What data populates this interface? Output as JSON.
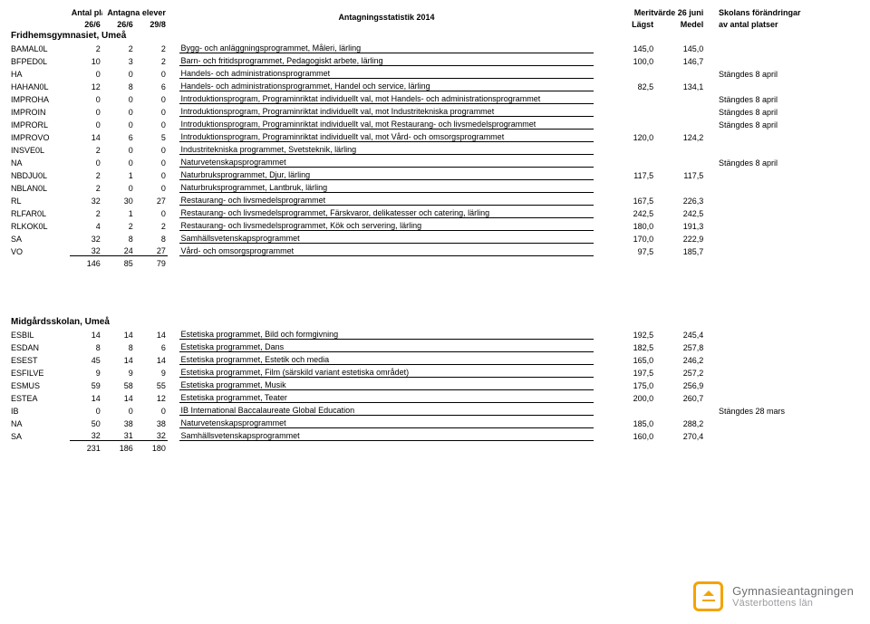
{
  "header": {
    "title": "Antagningsstatistik 2014",
    "col_antal_platser": "Antal platser",
    "col_antagna": "Antagna elever",
    "col_merit": "Meritvärde 26 juni",
    "col_skolans": "Skolans förändringar",
    "sub_26_6a": "26/6",
    "sub_26_6b": "26/6",
    "sub_29_8": "29/8",
    "sub_lagst": "Lägst",
    "sub_medel": "Medel",
    "sub_av_platser": "av antal platser"
  },
  "footer": {
    "line1": "Gymnasieantagningen",
    "line2": "Västerbottens län",
    "logo_color": "#f4a300"
  },
  "schools": [
    {
      "name": "Fridhemsgymnasiet, Umeå",
      "rows": [
        {
          "code": "BAMAL0L",
          "p": "2",
          "a1": "2",
          "a2": "2",
          "desc": "Bygg- och anläggningsprogrammet, Måleri, lärling",
          "m1": "145,0",
          "m2": "145,0",
          "note": ""
        },
        {
          "code": "BFPED0L",
          "p": "10",
          "a1": "3",
          "a2": "2",
          "desc": "Barn- och fritidsprogrammet, Pedagogiskt arbete, lärling",
          "m1": "100,0",
          "m2": "146,7",
          "note": ""
        },
        {
          "code": "HA",
          "p": "0",
          "a1": "0",
          "a2": "0",
          "desc": "Handels- och administrationsprogrammet",
          "m1": "",
          "m2": "",
          "note": "Stängdes 8 april"
        },
        {
          "code": "HAHAN0L",
          "p": "12",
          "a1": "8",
          "a2": "6",
          "desc": "Handels- och administrationsprogrammet, Handel och service, lärling",
          "m1": "82,5",
          "m2": "134,1",
          "note": ""
        },
        {
          "code": "IMPROHA",
          "p": "0",
          "a1": "0",
          "a2": "0",
          "desc": "Introduktionsprogram, Programinriktat individuellt val, mot Handels- och administrationsprogrammet",
          "m1": "",
          "m2": "",
          "note": "Stängdes 8 april"
        },
        {
          "code": "IMPROIN",
          "p": "0",
          "a1": "0",
          "a2": "0",
          "desc": "Introduktionsprogram, Programinriktat individuellt val, mot Industritekniska programmet",
          "m1": "",
          "m2": "",
          "note": "Stängdes 8 april"
        },
        {
          "code": "IMPRORL",
          "p": "0",
          "a1": "0",
          "a2": "0",
          "desc": "Introduktionsprogram, Programinriktat individuellt val, mot Restaurang- och livsmedelsprogrammet",
          "m1": "",
          "m2": "",
          "note": "Stängdes 8 april"
        },
        {
          "code": "IMPROVO",
          "p": "14",
          "a1": "6",
          "a2": "5",
          "desc": "Introduktionsprogram, Programinriktat individuellt val, mot Vård- och omsorgsprogrammet",
          "m1": "120,0",
          "m2": "124,2",
          "note": ""
        },
        {
          "code": "INSVE0L",
          "p": "2",
          "a1": "0",
          "a2": "0",
          "desc": "Industritekniska programmet, Svetsteknik, lärling",
          "m1": "",
          "m2": "",
          "note": ""
        },
        {
          "code": "NA",
          "p": "0",
          "a1": "0",
          "a2": "0",
          "desc": "Naturvetenskapsprogrammet",
          "m1": "",
          "m2": "",
          "note": "Stängdes 8 april"
        },
        {
          "code": "NBDJU0L",
          "p": "2",
          "a1": "1",
          "a2": "0",
          "desc": "Naturbruksprogrammet, Djur, lärling",
          "m1": "117,5",
          "m2": "117,5",
          "note": ""
        },
        {
          "code": "NBLAN0L",
          "p": "2",
          "a1": "0",
          "a2": "0",
          "desc": "Naturbruksprogrammet, Lantbruk, lärling",
          "m1": "",
          "m2": "",
          "note": ""
        },
        {
          "code": "RL",
          "p": "32",
          "a1": "30",
          "a2": "27",
          "desc": "Restaurang- och livsmedelsprogrammet",
          "m1": "167,5",
          "m2": "226,3",
          "note": ""
        },
        {
          "code": "RLFAR0L",
          "p": "2",
          "a1": "1",
          "a2": "0",
          "desc": "Restaurang- och livsmedelsprogrammet, Färskvaror, delikatesser och catering, lärling",
          "m1": "242,5",
          "m2": "242,5",
          "note": ""
        },
        {
          "code": "RLKOK0L",
          "p": "4",
          "a1": "2",
          "a2": "2",
          "desc": "Restaurang- och livsmedelsprogrammet, Kök och servering, lärling",
          "m1": "180,0",
          "m2": "191,3",
          "note": ""
        },
        {
          "code": "SA",
          "p": "32",
          "a1": "8",
          "a2": "8",
          "desc": "Samhällsvetenskapsprogrammet",
          "m1": "170,0",
          "m2": "222,9",
          "note": ""
        },
        {
          "code": "VO",
          "p": "32",
          "a1": "24",
          "a2": "27",
          "desc": "Vård- och omsorgsprogrammet",
          "m1": "97,5",
          "m2": "185,7",
          "note": ""
        }
      ],
      "totals": {
        "p": "146",
        "a1": "85",
        "a2": "79"
      }
    },
    {
      "name": "Midgårdsskolan, Umeå",
      "rows": [
        {
          "code": "ESBIL",
          "p": "14",
          "a1": "14",
          "a2": "14",
          "desc": "Estetiska programmet, Bild och formgivning",
          "m1": "192,5",
          "m2": "245,4",
          "note": ""
        },
        {
          "code": "ESDAN",
          "p": "8",
          "a1": "8",
          "a2": "6",
          "desc": "Estetiska programmet, Dans",
          "m1": "182,5",
          "m2": "257,8",
          "note": ""
        },
        {
          "code": "ESEST",
          "p": "45",
          "a1": "14",
          "a2": "14",
          "desc": "Estetiska programmet, Estetik och media",
          "m1": "165,0",
          "m2": "246,2",
          "note": ""
        },
        {
          "code": "ESFILVE",
          "p": "9",
          "a1": "9",
          "a2": "9",
          "desc": "Estetiska programmet, Film (särskild variant estetiska området)",
          "m1": "197,5",
          "m2": "257,2",
          "note": ""
        },
        {
          "code": "ESMUS",
          "p": "59",
          "a1": "58",
          "a2": "55",
          "desc": "Estetiska programmet, Musik",
          "m1": "175,0",
          "m2": "256,9",
          "note": ""
        },
        {
          "code": "ESTEA",
          "p": "14",
          "a1": "14",
          "a2": "12",
          "desc": "Estetiska programmet, Teater",
          "m1": "200,0",
          "m2": "260,7",
          "note": ""
        },
        {
          "code": "IB",
          "p": "0",
          "a1": "0",
          "a2": "0",
          "desc": "IB International Baccalaureate Global Education",
          "m1": "",
          "m2": "",
          "note": "Stängdes 28 mars"
        },
        {
          "code": "NA",
          "p": "50",
          "a1": "38",
          "a2": "38",
          "desc": "Naturvetenskapsprogrammet",
          "m1": "185,0",
          "m2": "288,2",
          "note": ""
        },
        {
          "code": "SA",
          "p": "32",
          "a1": "31",
          "a2": "32",
          "desc": "Samhällsvetenskapsprogrammet",
          "m1": "160,0",
          "m2": "270,4",
          "note": ""
        }
      ],
      "totals": {
        "p": "231",
        "a1": "186",
        "a2": "180"
      }
    }
  ]
}
